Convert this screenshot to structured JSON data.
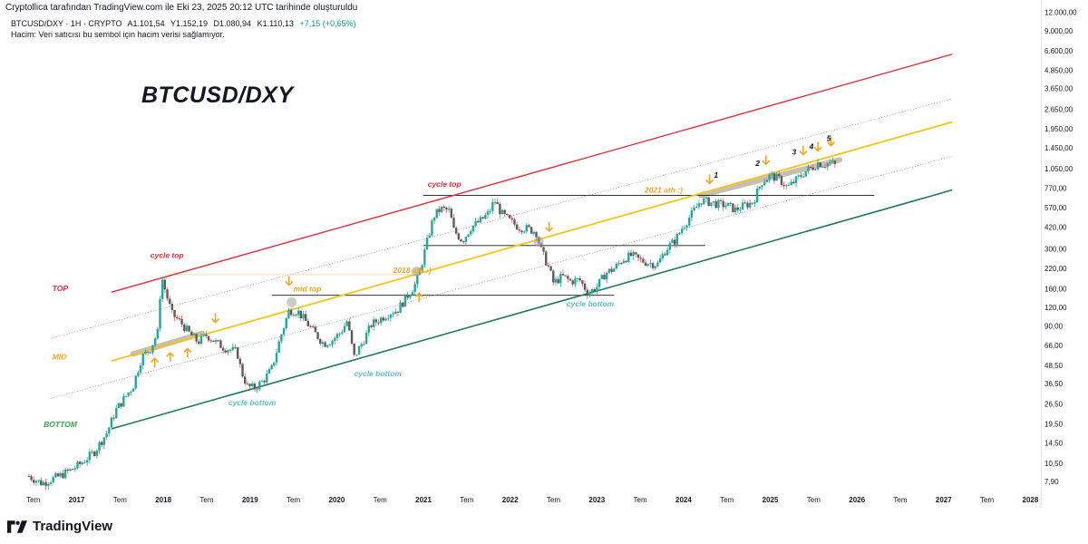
{
  "header": {
    "publisher_line": "Cryptollica tarafından TradingView.com ile Eki 23, 2025 20:12 UTC tarihinde oluşturuldu",
    "symbol": "BTCUSD/DXY · 1H · CRYPTO",
    "open": "A1.101,54",
    "high": "Y1.152,19",
    "low": "D1.080,94",
    "close": "K1.110,13",
    "change": "+7,15 (+0,65%)",
    "volume_note": "Hacim: Veri satıcısı bu sembol için hacim verisi sağlamıyor."
  },
  "footer": {
    "brand": "TradingView"
  },
  "colors": {
    "top_line": "#e0303a",
    "mid_line": "#f5c518",
    "bottom_line": "#1f7a5c",
    "annotation_orange": "#f5a623",
    "cycle_top_red": "#e0303a",
    "cycle_bottom_teal": "#5bc0c8",
    "bottom_green": "#3aa845",
    "candle_up": "#26a69a",
    "candle_down": "#ef5350"
  },
  "chart_data": {
    "type": "candlestick",
    "title": "BTCUSD/DXY",
    "scale": "log",
    "y_tick_labels": [
      "12.000,00",
      "9.000,00",
      "6.600,00",
      "4.850,00",
      "3.650,00",
      "2.650,00",
      "1.950,00",
      "1.450,00",
      "1.050,00",
      "770,00",
      "570,00",
      "420,00",
      "300,00",
      "220,00",
      "160,00",
      "120,00",
      "90,00",
      "66,00",
      "48,50",
      "36,50",
      "26,50",
      "19,50",
      "14,50",
      "10,50",
      "7,90"
    ],
    "y_tick_values": [
      12000,
      9000,
      6600,
      4850,
      3650,
      2650,
      1950,
      1450,
      1050,
      770,
      570,
      420,
      300,
      220,
      160,
      120,
      90,
      66,
      48.5,
      36.5,
      26.5,
      19.5,
      14.5,
      10.5,
      7.9
    ],
    "ylim": [
      6.5,
      13000
    ],
    "x_tick_labels": [
      "Tem",
      "2017",
      "Tem",
      "2018",
      "Tem",
      "2019",
      "Tem",
      "2020",
      "Tem",
      "2021",
      "Tem",
      "2022",
      "Tem",
      "2023",
      "Tem",
      "2024",
      "Tem",
      "2025",
      "Tem",
      "2026",
      "Tem",
      "2027",
      "Tem",
      "2028"
    ],
    "x_tick_values": [
      2016.5,
      2017,
      2017.5,
      2018,
      2018.5,
      2019,
      2019.5,
      2020,
      2020.5,
      2021,
      2021.5,
      2022,
      2022.5,
      2023,
      2023.5,
      2024,
      2024.5,
      2025,
      2025.5,
      2026,
      2026.5,
      2027,
      2027.5,
      2028
    ],
    "xlim": [
      2016.2,
      2028.1
    ],
    "series": [
      {
        "name": "price",
        "points": [
          [
            2016.45,
            8.6
          ],
          [
            2016.6,
            7.7
          ],
          [
            2016.8,
            8.6
          ],
          [
            2016.95,
            9.6
          ],
          [
            2017.05,
            10.5
          ],
          [
            2017.2,
            12.5
          ],
          [
            2017.35,
            17
          ],
          [
            2017.45,
            24
          ],
          [
            2017.55,
            29
          ],
          [
            2017.65,
            35
          ],
          [
            2017.75,
            55
          ],
          [
            2017.85,
            63
          ],
          [
            2017.95,
            85
          ],
          [
            2017.97,
            205
          ],
          [
            2018.03,
            150
          ],
          [
            2018.1,
            108
          ],
          [
            2018.2,
            95
          ],
          [
            2018.3,
            80
          ],
          [
            2018.4,
            70
          ],
          [
            2018.5,
            78
          ],
          [
            2018.6,
            70
          ],
          [
            2018.7,
            64
          ],
          [
            2018.85,
            60
          ],
          [
            2018.9,
            44
          ],
          [
            2018.97,
            35
          ],
          [
            2019.05,
            34
          ],
          [
            2019.15,
            38
          ],
          [
            2019.25,
            46
          ],
          [
            2019.35,
            75
          ],
          [
            2019.45,
            115
          ],
          [
            2019.55,
            113
          ],
          [
            2019.65,
            95
          ],
          [
            2019.75,
            80
          ],
          [
            2019.85,
            68
          ],
          [
            2019.95,
            72
          ],
          [
            2020.05,
            82
          ],
          [
            2020.12,
            97
          ],
          [
            2020.2,
            55
          ],
          [
            2020.3,
            70
          ],
          [
            2020.4,
            92
          ],
          [
            2020.5,
            100
          ],
          [
            2020.6,
            110
          ],
          [
            2020.7,
            115
          ],
          [
            2020.8,
            140
          ],
          [
            2020.9,
            170
          ],
          [
            2020.95,
            200
          ],
          [
            2021.05,
            350
          ],
          [
            2021.12,
            500
          ],
          [
            2021.2,
            560
          ],
          [
            2021.3,
            540
          ],
          [
            2021.35,
            400
          ],
          [
            2021.45,
            340
          ],
          [
            2021.55,
            420
          ],
          [
            2021.65,
            460
          ],
          [
            2021.75,
            520
          ],
          [
            2021.82,
            640
          ],
          [
            2021.9,
            520
          ],
          [
            2022.0,
            460
          ],
          [
            2022.1,
            420
          ],
          [
            2022.2,
            410
          ],
          [
            2022.3,
            390
          ],
          [
            2022.35,
            300
          ],
          [
            2022.45,
            220
          ],
          [
            2022.5,
            175
          ],
          [
            2022.6,
            195
          ],
          [
            2022.7,
            180
          ],
          [
            2022.8,
            185
          ],
          [
            2022.9,
            150
          ],
          [
            2023.0,
            165
          ],
          [
            2023.1,
            205
          ],
          [
            2023.2,
            220
          ],
          [
            2023.3,
            255
          ],
          [
            2023.4,
            270
          ],
          [
            2023.5,
            250
          ],
          [
            2023.6,
            240
          ],
          [
            2023.7,
            235
          ],
          [
            2023.8,
            300
          ],
          [
            2023.9,
            340
          ],
          [
            2024.0,
            430
          ],
          [
            2024.1,
            520
          ],
          [
            2024.2,
            640
          ],
          [
            2024.3,
            620
          ],
          [
            2024.4,
            600
          ],
          [
            2024.5,
            590
          ],
          [
            2024.6,
            550
          ],
          [
            2024.7,
            590
          ],
          [
            2024.8,
            620
          ],
          [
            2024.9,
            850
          ],
          [
            2025.0,
            940
          ],
          [
            2025.1,
            890
          ],
          [
            2025.2,
            780
          ],
          [
            2025.3,
            880
          ],
          [
            2025.4,
            1000
          ],
          [
            2025.5,
            1080
          ],
          [
            2025.55,
            1150
          ],
          [
            2025.62,
            1120
          ],
          [
            2025.7,
            1150
          ],
          [
            2025.75,
            1100
          ]
        ]
      }
    ],
    "channel_lines": [
      {
        "name": "TOP",
        "points": [
          [
            2017.4,
            152
          ],
          [
            2027.1,
            6250
          ]
        ]
      },
      {
        "name": "upper-dotted",
        "points": [
          [
            2016.7,
            74
          ],
          [
            2027.1,
            3120
          ]
        ]
      },
      {
        "name": "MID",
        "points": [
          [
            2017.4,
            52
          ],
          [
            2027.1,
            2170
          ]
        ]
      },
      {
        "name": "lower-dotted",
        "points": [
          [
            2016.7,
            29
          ],
          [
            2027.1,
            1270
          ]
        ]
      },
      {
        "name": "BOTTOM",
        "points": [
          [
            2017.4,
            18
          ],
          [
            2027.1,
            750
          ]
        ]
      }
    ],
    "horizontal_levels": [
      {
        "y": 690,
        "from": 2021.0,
        "to": 2026.2
      },
      {
        "y": 315,
        "from": 2021.0,
        "to": 2024.25
      },
      {
        "y": 145,
        "from": 2019.25,
        "to": 2023.2
      },
      {
        "y": 200,
        "from": 2018.0,
        "to": 2020.9
      }
    ],
    "highlight_bands": [
      {
        "points": [
          [
            2017.65,
            58
          ],
          [
            2018.45,
            80
          ]
        ]
      },
      {
        "points": [
          [
            2024.2,
            690
          ],
          [
            2025.8,
            1200
          ]
        ]
      }
    ],
    "annotations": {
      "title": "BTCUSD/DXY",
      "labels": [
        {
          "text": "TOP",
          "x": 2016.72,
          "y": 155,
          "color": "top"
        },
        {
          "text": "MID",
          "x": 2016.72,
          "y": 53,
          "color": "orange"
        },
        {
          "text": "BOTTOM",
          "x": 2016.62,
          "y": 18.5,
          "color": "green"
        },
        {
          "text": "cycle top",
          "x": 2017.85,
          "y": 260,
          "color": "top"
        },
        {
          "text": "cycle top",
          "x": 2021.05,
          "y": 790,
          "color": "top"
        },
        {
          "text": "cycle bottom",
          "x": 2018.75,
          "y": 26,
          "color": "teal"
        },
        {
          "text": "cycle bottom",
          "x": 2020.2,
          "y": 41,
          "color": "teal"
        },
        {
          "text": "cycle bottom",
          "x": 2022.65,
          "y": 122,
          "color": "teal"
        },
        {
          "text": "mid top",
          "x": 2019.5,
          "y": 154,
          "color": "orange"
        },
        {
          "text": "2018 ath :)",
          "x": 2020.65,
          "y": 205,
          "color": "orange"
        },
        {
          "text": "2021 ath :)",
          "x": 2023.55,
          "y": 720,
          "color": "orange"
        },
        {
          "text": "1",
          "x": 2024.35,
          "y": 910,
          "color": "black"
        },
        {
          "text": "2",
          "x": 2024.83,
          "y": 1090,
          "color": "black"
        },
        {
          "text": "3",
          "x": 2025.25,
          "y": 1300,
          "color": "black"
        },
        {
          "text": "4",
          "x": 2025.45,
          "y": 1420,
          "color": "black"
        },
        {
          "text": "5",
          "x": 2025.65,
          "y": 1610,
          "color": "black"
        }
      ],
      "arrows_up": [
        [
          2017.9,
          54
        ],
        [
          2018.08,
          59
        ],
        [
          2018.28,
          63
        ],
        [
          2020.95,
          150
        ]
      ],
      "arrows_down": [
        [
          2018.6,
          95
        ],
        [
          2019.45,
          170
        ],
        [
          2022.45,
          395
        ],
        [
          2024.3,
          830
        ],
        [
          2024.95,
          1120
        ],
        [
          2025.38,
          1300
        ],
        [
          2025.55,
          1380
        ],
        [
          2025.7,
          1500
        ]
      ],
      "circles": [
        [
          2019.48,
          130
        ],
        [
          2020.92,
          210
        ],
        [
          2022.33,
          335
        ]
      ]
    }
  }
}
